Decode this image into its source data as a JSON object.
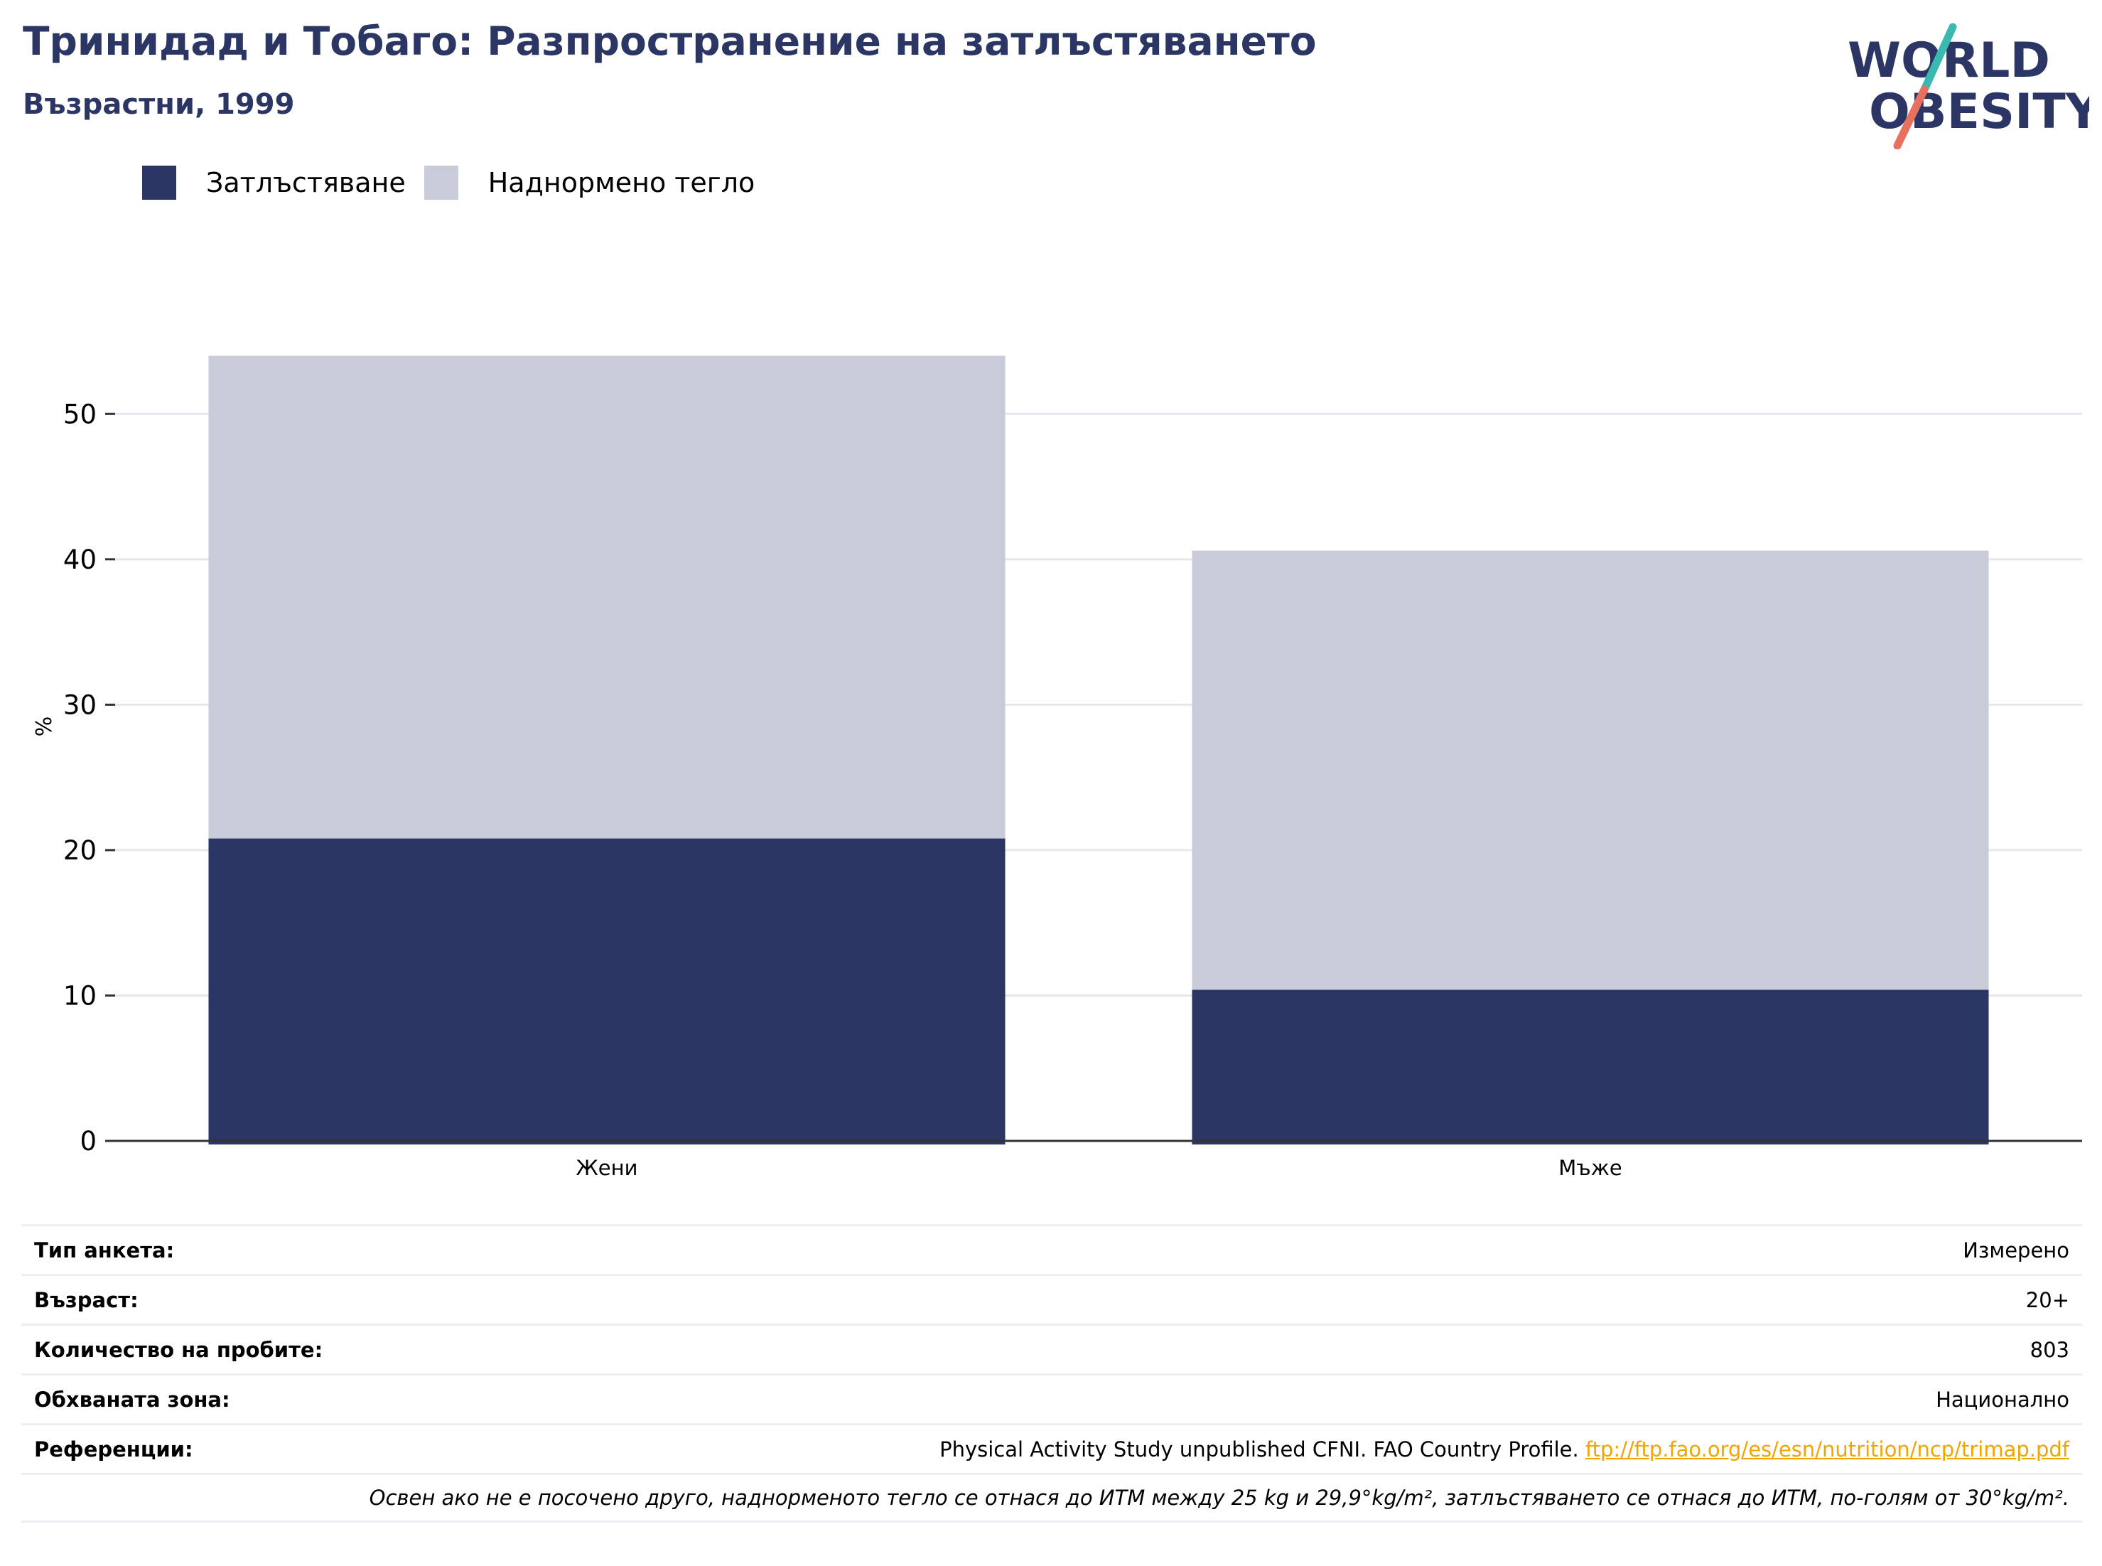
{
  "header": {
    "title": "Тринидад и Тобаго: Разпространение на затлъстяването",
    "subtitle": "Възрастни, 1999"
  },
  "logo": {
    "line1": "WORLD",
    "line2": "OBESITY"
  },
  "colors": {
    "obesity": "#2b3665",
    "overweight": "#c9ccd8",
    "title": "#2b3665",
    "grid": "#e6e7ed",
    "link": "#f0a500"
  },
  "legend": [
    {
      "label": "Затлъстяване",
      "color": "#2b3665"
    },
    {
      "label": "Наднормено тегло",
      "color": "#c9ccd8"
    }
  ],
  "chart_data": {
    "type": "bar",
    "stacked": true,
    "categories": [
      "Жени",
      "Мъже"
    ],
    "series": [
      {
        "name": "Затлъстяване",
        "values": [
          20.8,
          10.4
        ]
      },
      {
        "name": "Наднормено тегло",
        "values": [
          33.2,
          30.2
        ]
      }
    ],
    "ylabel": "%",
    "ylim": [
      0,
      55
    ],
    "yticks": [
      0,
      10,
      20,
      30,
      40,
      50
    ],
    "grid": true,
    "legend_position": "top-left"
  },
  "info": {
    "survey_label": "Тип анкета:",
    "survey_value": "Измерено",
    "age_label": "Възраст:",
    "age_value": "20+",
    "sample_label": "Количество на пробите:",
    "sample_value": "803",
    "area_label": "Обхваната зона:",
    "area_value": "Национално",
    "ref_label": "Референции:",
    "ref_text": "Physical Activity Study unpublished CFNI. FAO Country Profile. ",
    "ref_link": "ftp://ftp.fao.org/es/esn/nutrition/ncp/trimap.pdf",
    "note": "Освен ако не е посочено друго, наднорменото тегло се отнася до ИТМ между 25 kg и 29,9°kg/m², затлъстяването се отнася до ИТМ, по-голям от 30°kg/m²."
  }
}
